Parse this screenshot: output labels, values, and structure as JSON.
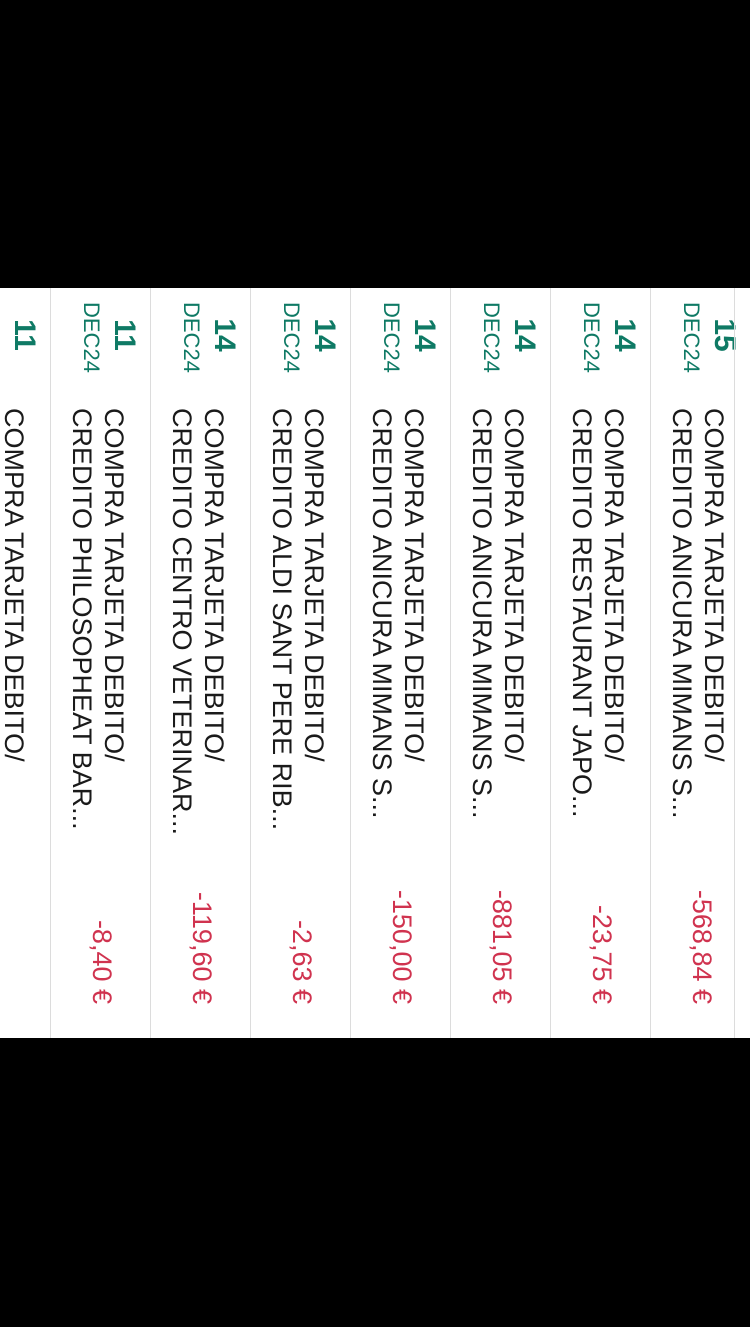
{
  "transactions": [
    {
      "day": "15",
      "month": "DEC24",
      "line1": "COMPRA TARJETA DEBITO/",
      "line2": "CREDITO ANICURA MIMANS S...",
      "amount": "-568,84 €"
    },
    {
      "day": "14",
      "month": "DEC24",
      "line1": "COMPRA TARJETA DEBITO/",
      "line2": "CREDITO RESTAURANT JAPO...",
      "amount": "-23,75 €"
    },
    {
      "day": "14",
      "month": "DEC24",
      "line1": "COMPRA TARJETA DEBITO/",
      "line2": "CREDITO ANICURA MIMANS S...",
      "amount": "-881,05 €"
    },
    {
      "day": "14",
      "month": "DEC24",
      "line1": "COMPRA TARJETA DEBITO/",
      "line2": "CREDITO ANICURA MIMANS S...",
      "amount": "-150,00 €"
    },
    {
      "day": "14",
      "month": "DEC24",
      "line1": "COMPRA TARJETA DEBITO/",
      "line2": "CREDITO ALDI SANT PERE RIB...",
      "amount": "-2,63 €"
    },
    {
      "day": "14",
      "month": "DEC24",
      "line1": "COMPRA TARJETA DEBITO/",
      "line2": "CREDITO CENTRO VETERINAR...",
      "amount": "-119,60 €"
    },
    {
      "day": "11",
      "month": "DEC24",
      "line1": "COMPRA TARJETA DEBITO/",
      "line2": "CREDITO PHILOSOPHEAT BAR...",
      "amount": "-8,40 €"
    },
    {
      "day": "11",
      "month": "",
      "line1": "COMPRA TARJETA DEBITO/",
      "line2": "",
      "amount": ""
    }
  ],
  "colors": {
    "date": "#0f7a65",
    "amount_negative": "#d0334f",
    "text": "#1a1a1a",
    "background": "#ffffff",
    "frame": "#000000"
  }
}
